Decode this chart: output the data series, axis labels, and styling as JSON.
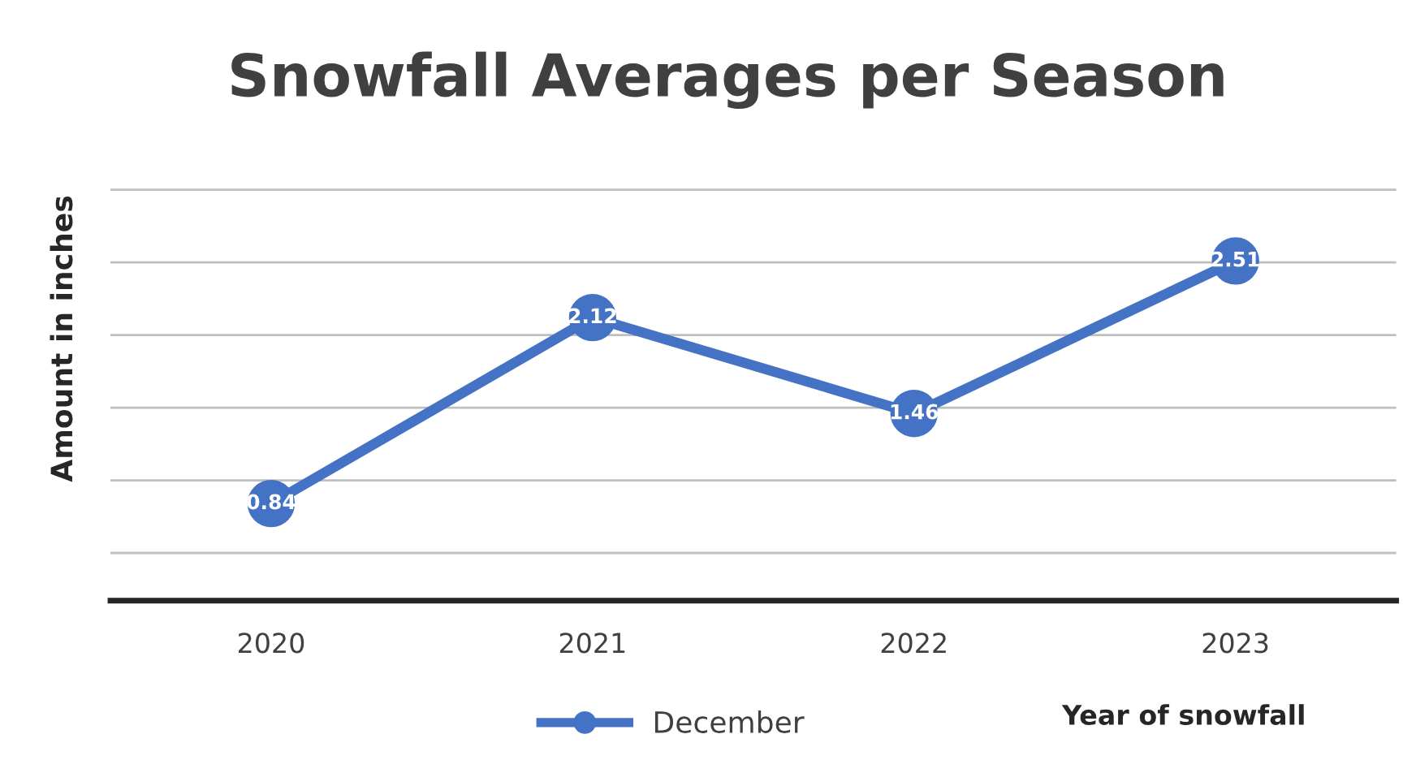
{
  "chart_data": {
    "type": "line",
    "title": "Snowfall Averages per Season",
    "xlabel": "Year of snowfall",
    "ylabel": "Amount in inches",
    "categories": [
      "2020",
      "2021",
      "2022",
      "2023"
    ],
    "series": [
      {
        "name": "December",
        "color": "#4472c4",
        "values": [
          0.84,
          2.12,
          1.46,
          2.51
        ]
      }
    ],
    "tick_labels": "x",
    "grid": "y",
    "legend": "bottom",
    "marker": "circle",
    "line_style": "solid",
    "data_labels": true
  }
}
